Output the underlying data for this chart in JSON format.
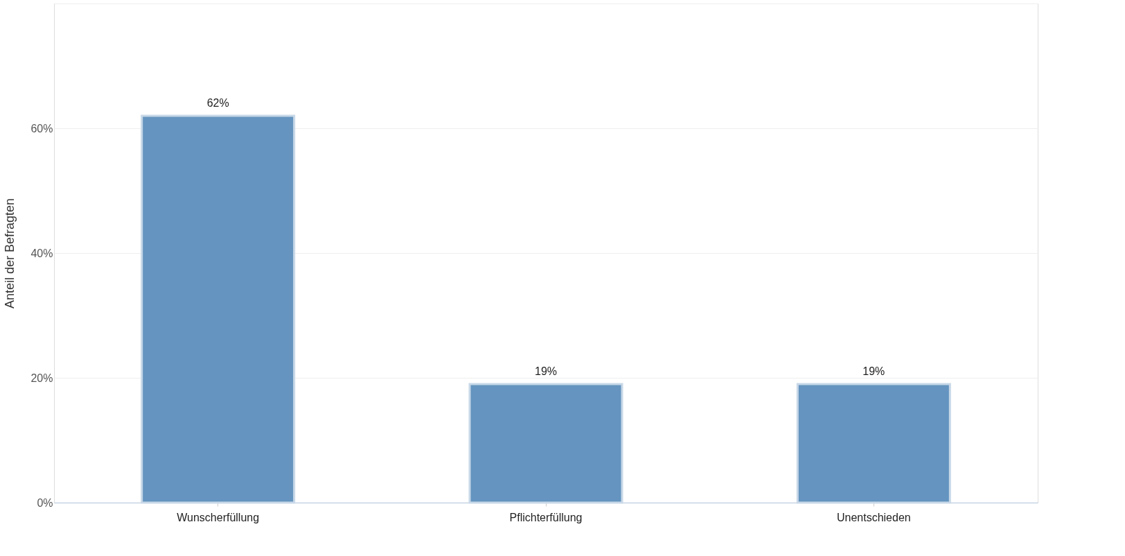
{
  "chart_data": {
    "type": "bar",
    "ylabel": "Anteil der Befragten",
    "categories": [
      "Wunscherfüllung",
      "Pflichterfüllung",
      "Unentschieden"
    ],
    "values": [
      62,
      19,
      19
    ],
    "color": "#6494bf",
    "value_labels": [
      "62%",
      "19%",
      "19%"
    ],
    "ylim": [
      0,
      80
    ],
    "yticks": [
      {
        "value": 0,
        "label": "0%"
      },
      {
        "value": 20,
        "label": "20%"
      },
      {
        "value": 40,
        "label": "40%"
      },
      {
        "value": 60,
        "label": "60%"
      },
      {
        "value": 80,
        "label": null
      }
    ],
    "grid": "y"
  }
}
